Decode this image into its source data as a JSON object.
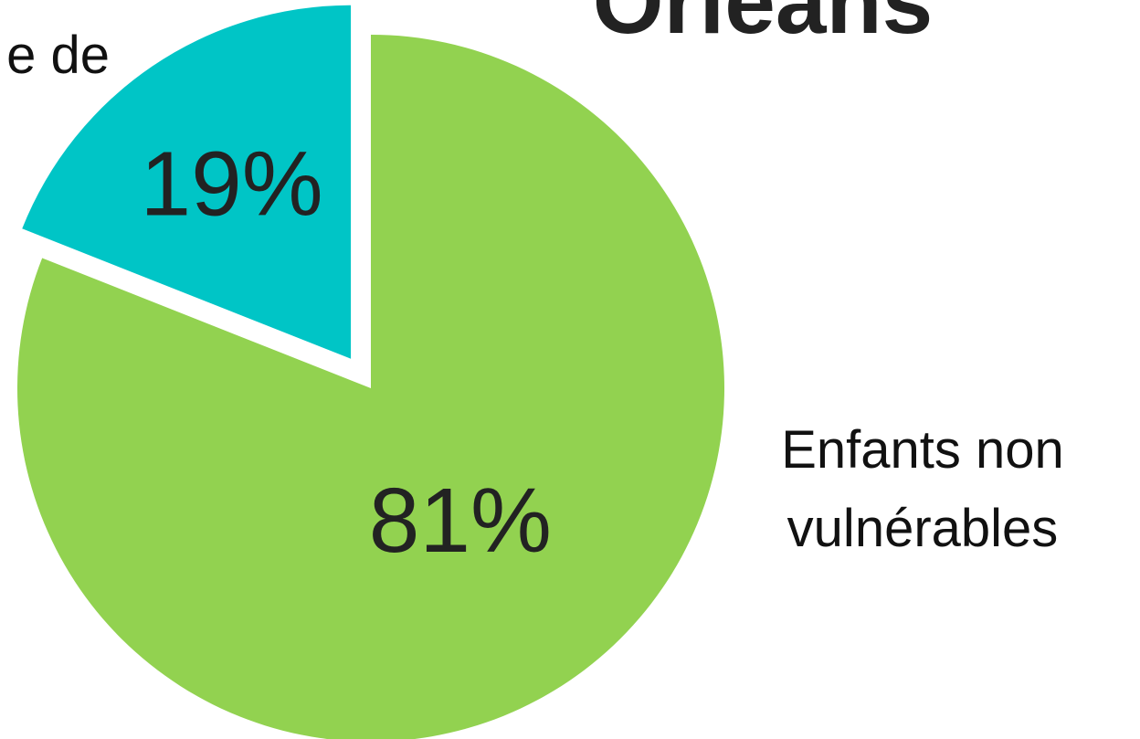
{
  "chart_data": {
    "type": "pie",
    "title": "Orléans",
    "categories": [
      "e de",
      "Enfants non vulnérables"
    ],
    "values": [
      19,
      81
    ],
    "value_labels": [
      "19%",
      "81%"
    ],
    "colors": [
      "#00c5c6",
      "#92d250"
    ]
  }
}
